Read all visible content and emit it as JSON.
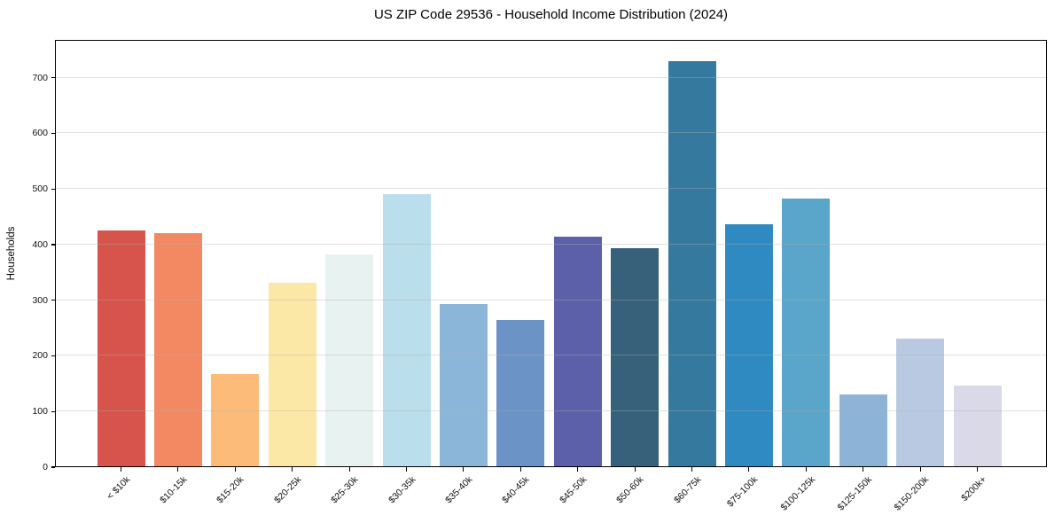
{
  "chart_data": {
    "type": "bar",
    "title": "US ZIP Code 29536 - Household Income Distribution (2024)",
    "xlabel": "",
    "ylabel": "Households",
    "categories": [
      "< $10k",
      "$10-15k",
      "$15-20k",
      "$20-25k",
      "$25-30k",
      "$30-35k",
      "$35-40k",
      "$40-45k",
      "$45-50k",
      "$50-60k",
      "$60-75k",
      "$75-100k",
      "$100-125k",
      "$125-150k",
      "$150-200k",
      "$200k+"
    ],
    "values": [
      426,
      421,
      168,
      331,
      382,
      490,
      293,
      264,
      415,
      394,
      730,
      436,
      483,
      130,
      231,
      146
    ],
    "bar_colors": [
      "#d6544c",
      "#f28963",
      "#fcbb78",
      "#fce8a6",
      "#e7f2f1",
      "#badeeb",
      "#8cb6d9",
      "#6b93c5",
      "#5c60a9",
      "#37607a",
      "#35799f",
      "#2f8ac1",
      "#5aa5ca",
      "#8db4d7",
      "#b8c9e1",
      "#d9d9e8"
    ],
    "yticks": [
      0,
      100,
      200,
      300,
      400,
      500,
      600,
      700
    ],
    "ylim": [
      0,
      768
    ],
    "grid": "horizontal-only, light gray, drawn over bars",
    "legend_position": "none",
    "background_color": "#ffffff",
    "frame_color": "#000000",
    "x_tick_rotation_deg": 45
  }
}
